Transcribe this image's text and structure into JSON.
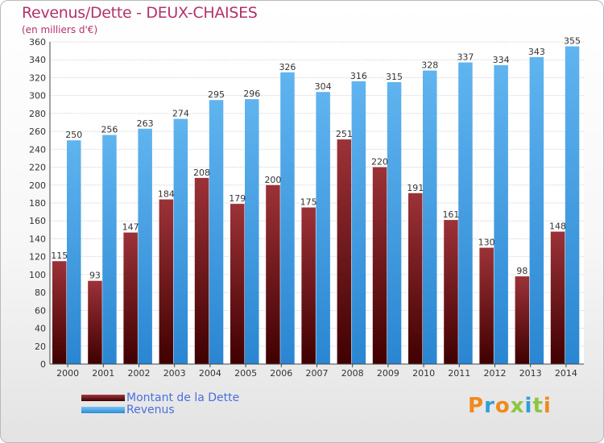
{
  "title": "Revenus/Dette - DEUX-CHAISES",
  "subtitle": "(en milliers d'€)",
  "logo": {
    "text": "Proxiti"
  },
  "legend": [
    {
      "label": "Montant de la Dette",
      "color": "#7a1c24"
    },
    {
      "label": "Revenus",
      "color": "#4aa3e8"
    }
  ],
  "chart_data": {
    "type": "bar",
    "categories": [
      "2000",
      "2001",
      "2002",
      "2003",
      "2004",
      "2005",
      "2006",
      "2007",
      "2008",
      "2009",
      "2010",
      "2011",
      "2012",
      "2013",
      "2014"
    ],
    "series": [
      {
        "name": "Montant de la Dette",
        "values": [
          115,
          93,
          147,
          184,
          208,
          179,
          200,
          175,
          251,
          220,
          191,
          161,
          130,
          98,
          148
        ],
        "color": "#7a1c24"
      },
      {
        "name": "Revenus",
        "values": [
          250,
          256,
          263,
          274,
          295,
          296,
          326,
          304,
          316,
          315,
          328,
          337,
          334,
          343,
          355
        ],
        "color": "#4aa3e8"
      }
    ],
    "ylim": [
      0,
      360
    ],
    "yticks": [
      0,
      20,
      40,
      60,
      80,
      100,
      120,
      140,
      160,
      180,
      200,
      220,
      240,
      260,
      280,
      300,
      320,
      340,
      360
    ],
    "grid": true,
    "legend_position": "bottom-left"
  }
}
